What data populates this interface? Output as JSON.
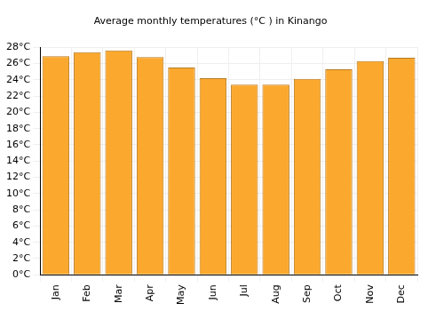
{
  "chart_data": {
    "type": "bar",
    "title": "Average monthly temperatures (°C ) in Kinango",
    "categories": [
      "Jan",
      "Feb",
      "Mar",
      "Apr",
      "May",
      "Jun",
      "Jul",
      "Aug",
      "Sep",
      "Oct",
      "Nov",
      "Dec"
    ],
    "values": [
      26.9,
      27.4,
      27.6,
      26.8,
      25.5,
      24.2,
      23.4,
      23.4,
      24.1,
      25.3,
      26.3,
      26.7
    ],
    "color": "#fba92e",
    "ylim": [
      0,
      28
    ],
    "yticks": [
      {
        "value": 0,
        "label": "0°C"
      },
      {
        "value": 2,
        "label": "2°C"
      },
      {
        "value": 4,
        "label": "4°C"
      },
      {
        "value": 6,
        "label": "6°C"
      },
      {
        "value": 8,
        "label": "8°C"
      },
      {
        "value": 10,
        "label": "10°C"
      },
      {
        "value": 12,
        "label": "12°C"
      },
      {
        "value": 14,
        "label": "14°C"
      },
      {
        "value": 16,
        "label": "16°C"
      },
      {
        "value": 18,
        "label": "18°C"
      },
      {
        "value": 20,
        "label": "20°C"
      },
      {
        "value": 22,
        "label": "22°C"
      },
      {
        "value": 24,
        "label": "24°C"
      },
      {
        "value": 26,
        "label": "26°C"
      },
      {
        "value": 28,
        "label": "28°C"
      }
    ],
    "grid": true
  }
}
